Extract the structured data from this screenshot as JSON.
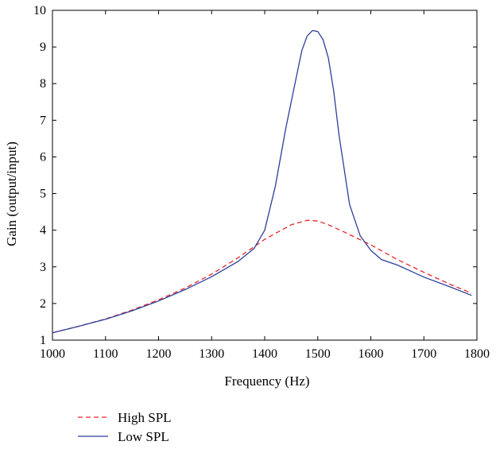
{
  "chart_data": {
    "type": "line",
    "xlabel": "Frequency (Hz)",
    "ylabel": "Gain (output/input)",
    "xlim": [
      1000,
      1800
    ],
    "ylim": [
      1,
      10
    ],
    "x_ticks": [
      1000,
      1100,
      1200,
      1300,
      1400,
      1500,
      1600,
      1700,
      1800
    ],
    "y_ticks": [
      1,
      2,
      3,
      4,
      5,
      6,
      7,
      8,
      9,
      10
    ],
    "grid": false,
    "legend_position": "below plot, left",
    "series": [
      {
        "name": "High SPL",
        "color": "#e8262a",
        "style": "dashed",
        "x": [
          1000,
          1050,
          1100,
          1150,
          1200,
          1250,
          1300,
          1350,
          1400,
          1450,
          1480,
          1500,
          1520,
          1550,
          1600,
          1650,
          1700,
          1750,
          1790
        ],
        "y": [
          1.2,
          1.38,
          1.58,
          1.82,
          2.1,
          2.42,
          2.8,
          3.25,
          3.75,
          4.15,
          4.27,
          4.25,
          4.15,
          3.95,
          3.6,
          3.2,
          2.85,
          2.52,
          2.28
        ]
      },
      {
        "name": "Low SPL",
        "color": "#2c3f9a",
        "style": "solid",
        "x": [
          1000,
          1050,
          1100,
          1150,
          1200,
          1250,
          1300,
          1350,
          1380,
          1400,
          1420,
          1440,
          1460,
          1470,
          1480,
          1490,
          1500,
          1510,
          1520,
          1530,
          1540,
          1560,
          1580,
          1600,
          1620,
          1650,
          1700,
          1750,
          1790
        ],
        "y": [
          1.2,
          1.38,
          1.57,
          1.8,
          2.07,
          2.38,
          2.73,
          3.15,
          3.5,
          4.0,
          5.2,
          6.8,
          8.2,
          8.9,
          9.3,
          9.45,
          9.42,
          9.2,
          8.7,
          7.8,
          6.6,
          4.7,
          3.85,
          3.45,
          3.2,
          3.05,
          2.72,
          2.45,
          2.22
        ]
      }
    ]
  }
}
